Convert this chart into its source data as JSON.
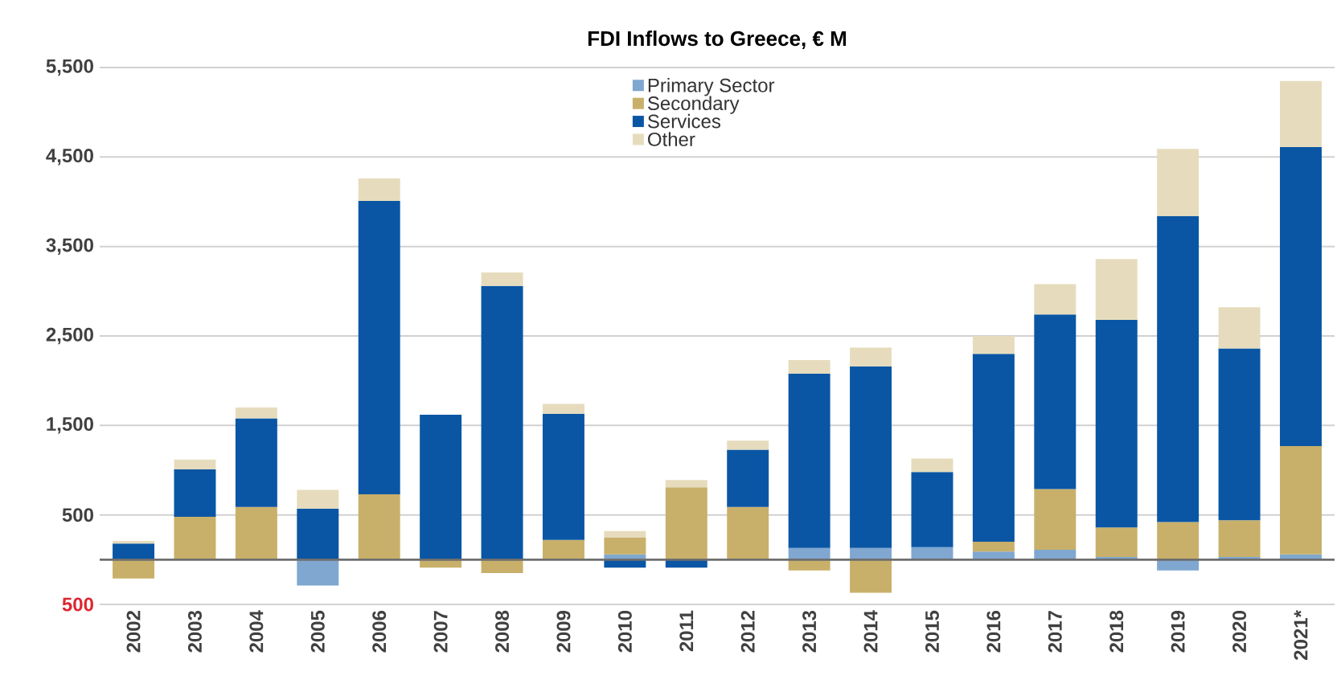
{
  "chart_data": {
    "type": "bar",
    "stacked": true,
    "title": "FDI Inflows to Greece, € M",
    "categories": [
      "2002",
      "2003",
      "2004",
      "2005",
      "2006",
      "2007",
      "2008",
      "2009",
      "2010",
      "2011",
      "2012",
      "2013",
      "2014",
      "2015",
      "2016",
      "2017",
      "2018",
      "2019",
      "2020",
      "2021*"
    ],
    "series": [
      {
        "name": "Primary Sector",
        "color": "#7fa7d0",
        "values": [
          0,
          0,
          0,
          -290,
          0,
          0,
          0,
          0,
          60,
          0,
          0,
          130,
          130,
          140,
          90,
          110,
          30,
          -120,
          30,
          60
        ]
      },
      {
        "name": "Secondary",
        "color": "#c8b06a",
        "values": [
          -210,
          480,
          590,
          0,
          730,
          -90,
          -150,
          220,
          190,
          810,
          590,
          -120,
          -370,
          0,
          110,
          680,
          330,
          420,
          410,
          1210
        ]
      },
      {
        "name": "Services",
        "color": "#0a56a4",
        "values": [
          180,
          530,
          990,
          570,
          3280,
          1620,
          3060,
          1410,
          -90,
          -90,
          640,
          1950,
          2030,
          840,
          2100,
          1950,
          2320,
          3420,
          1920,
          3340
        ]
      },
      {
        "name": "Other",
        "color": "#e6dcbd",
        "values": [
          30,
          110,
          120,
          210,
          250,
          0,
          150,
          110,
          70,
          80,
          100,
          150,
          210,
          150,
          200,
          340,
          680,
          750,
          460,
          740
        ]
      }
    ],
    "ylim": [
      -500,
      5500
    ],
    "yticks": [
      {
        "value": -500,
        "label": "500"
      },
      {
        "value": 500,
        "label": "500"
      },
      {
        "value": 1500,
        "label": "1,500"
      },
      {
        "value": 2500,
        "label": "2,500"
      },
      {
        "value": 3500,
        "label": "3,500"
      },
      {
        "value": 4500,
        "label": "4,500"
      },
      {
        "value": 5500,
        "label": "5,500"
      }
    ],
    "ref_lines": [
      {
        "axis": "y",
        "value": 0,
        "color": "#6e6e6e"
      }
    ],
    "grid": "y",
    "legend": "top"
  }
}
